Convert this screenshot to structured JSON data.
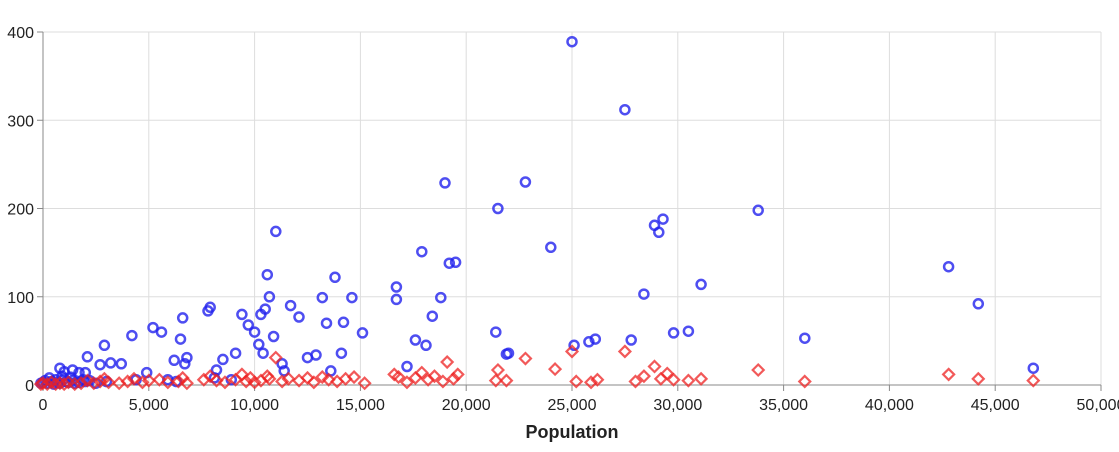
{
  "chart_data": {
    "type": "scatter",
    "xlabel": "Population",
    "ylabel": "",
    "xlim": [
      0,
      50000
    ],
    "ylim": [
      0,
      400
    ],
    "grid": true,
    "x_ticks": [
      "0",
      "5,000",
      "10,000",
      "15,000",
      "20,000",
      "25,000",
      "30,000",
      "35,000",
      "40,000",
      "45,000",
      "50,000"
    ],
    "y_ticks": [
      "0",
      "100",
      "200",
      "300",
      "400"
    ],
    "series": [
      {
        "marker": "circle",
        "color": "#2222ee",
        "points": [
          [
            -100,
            2
          ],
          [
            0,
            3
          ],
          [
            100,
            5
          ],
          [
            200,
            2
          ],
          [
            300,
            8
          ],
          [
            400,
            4
          ],
          [
            500,
            1
          ],
          [
            600,
            6
          ],
          [
            700,
            3
          ],
          [
            800,
            2
          ],
          [
            900,
            10
          ],
          [
            1000,
            7
          ],
          [
            1100,
            4
          ],
          [
            1200,
            3
          ],
          [
            1300,
            9
          ],
          [
            1400,
            5
          ],
          [
            1500,
            2
          ],
          [
            1700,
            3
          ],
          [
            1900,
            6
          ],
          [
            2000,
            4
          ],
          [
            2200,
            5
          ],
          [
            2500,
            2
          ],
          [
            3000,
            4
          ],
          [
            800,
            19
          ],
          [
            1000,
            15
          ],
          [
            1400,
            17
          ],
          [
            1700,
            14
          ],
          [
            2100,
            32
          ],
          [
            2000,
            14
          ],
          [
            2700,
            23
          ],
          [
            2900,
            45
          ],
          [
            3200,
            25
          ],
          [
            3700,
            24
          ],
          [
            4200,
            56
          ],
          [
            4400,
            6
          ],
          [
            4900,
            14
          ],
          [
            5200,
            65
          ],
          [
            5600,
            60
          ],
          [
            5900,
            6
          ],
          [
            6200,
            28
          ],
          [
            6300,
            4
          ],
          [
            6500,
            52
          ],
          [
            6600,
            76
          ],
          [
            6700,
            24
          ],
          [
            6800,
            31
          ],
          [
            7800,
            84
          ],
          [
            7900,
            88
          ],
          [
            8100,
            8
          ],
          [
            8200,
            17
          ],
          [
            8500,
            29
          ],
          [
            8900,
            6
          ],
          [
            9100,
            36
          ],
          [
            9400,
            80
          ],
          [
            9700,
            68
          ],
          [
            10000,
            60
          ],
          [
            10200,
            46
          ],
          [
            10300,
            80
          ],
          [
            10400,
            36
          ],
          [
            10500,
            86
          ],
          [
            10600,
            125
          ],
          [
            10700,
            100
          ],
          [
            10900,
            55
          ],
          [
            11000,
            174
          ],
          [
            11300,
            24
          ],
          [
            11400,
            16
          ],
          [
            11700,
            90
          ],
          [
            12100,
            77
          ],
          [
            12500,
            31
          ],
          [
            12900,
            34
          ],
          [
            13200,
            99
          ],
          [
            13400,
            70
          ],
          [
            13600,
            16
          ],
          [
            13800,
            122
          ],
          [
            14100,
            36
          ],
          [
            14200,
            71
          ],
          [
            14600,
            99
          ],
          [
            15100,
            59
          ],
          [
            16700,
            97
          ],
          [
            16700,
            111
          ],
          [
            17200,
            21
          ],
          [
            17600,
            51
          ],
          [
            18100,
            45
          ],
          [
            18400,
            78
          ],
          [
            17900,
            151
          ],
          [
            18800,
            99
          ],
          [
            19000,
            229
          ],
          [
            19200,
            138
          ],
          [
            19500,
            139
          ],
          [
            21400,
            60
          ],
          [
            21500,
            200
          ],
          [
            21900,
            35
          ],
          [
            22000,
            36
          ],
          [
            22800,
            230
          ],
          [
            24000,
            156
          ],
          [
            25000,
            389
          ],
          [
            25100,
            45
          ],
          [
            25800,
            49
          ],
          [
            26100,
            52
          ],
          [
            27500,
            312
          ],
          [
            27800,
            51
          ],
          [
            28400,
            103
          ],
          [
            28900,
            181
          ],
          [
            29100,
            173
          ],
          [
            29300,
            188
          ],
          [
            29800,
            59
          ],
          [
            30500,
            61
          ],
          [
            31100,
            114
          ],
          [
            33800,
            198
          ],
          [
            36000,
            53
          ],
          [
            42800,
            134
          ],
          [
            44200,
            92
          ],
          [
            46800,
            19
          ]
        ]
      },
      {
        "marker": "diamond",
        "color": "#ee2222",
        "points": [
          [
            -100,
            1
          ],
          [
            0,
            2
          ],
          [
            200,
            1
          ],
          [
            400,
            3
          ],
          [
            600,
            1
          ],
          [
            800,
            2
          ],
          [
            1000,
            1
          ],
          [
            1200,
            3
          ],
          [
            1500,
            1
          ],
          [
            1800,
            2
          ],
          [
            2100,
            5
          ],
          [
            2400,
            2
          ],
          [
            2700,
            4
          ],
          [
            2900,
            7
          ],
          [
            3100,
            3
          ],
          [
            3600,
            2
          ],
          [
            4000,
            4
          ],
          [
            4300,
            7
          ],
          [
            4700,
            3
          ],
          [
            5000,
            5
          ],
          [
            5500,
            6
          ],
          [
            5900,
            3
          ],
          [
            6400,
            4
          ],
          [
            6600,
            8
          ],
          [
            6800,
            2
          ],
          [
            7600,
            6
          ],
          [
            7900,
            10
          ],
          [
            8200,
            5
          ],
          [
            8600,
            3
          ],
          [
            9100,
            6
          ],
          [
            9400,
            12
          ],
          [
            9600,
            4
          ],
          [
            9800,
            8
          ],
          [
            10000,
            3
          ],
          [
            10300,
            5
          ],
          [
            10600,
            10
          ],
          [
            10700,
            7
          ],
          [
            11000,
            31
          ],
          [
            11300,
            4
          ],
          [
            11600,
            7
          ],
          [
            12100,
            5
          ],
          [
            12500,
            8
          ],
          [
            12800,
            3
          ],
          [
            13200,
            9
          ],
          [
            13500,
            6
          ],
          [
            13900,
            4
          ],
          [
            14300,
            7
          ],
          [
            14700,
            9
          ],
          [
            15200,
            2
          ],
          [
            16600,
            12
          ],
          [
            16800,
            9
          ],
          [
            17200,
            3
          ],
          [
            17600,
            8
          ],
          [
            17900,
            14
          ],
          [
            18200,
            6
          ],
          [
            18500,
            10
          ],
          [
            18900,
            4
          ],
          [
            19100,
            26
          ],
          [
            19400,
            7
          ],
          [
            19600,
            12
          ],
          [
            21400,
            5
          ],
          [
            21500,
            17
          ],
          [
            21900,
            5
          ],
          [
            22800,
            30
          ],
          [
            24200,
            18
          ],
          [
            25000,
            38
          ],
          [
            25200,
            4
          ],
          [
            25900,
            3
          ],
          [
            26200,
            6
          ],
          [
            27500,
            38
          ],
          [
            28000,
            4
          ],
          [
            28400,
            10
          ],
          [
            28900,
            21
          ],
          [
            29200,
            7
          ],
          [
            29500,
            13
          ],
          [
            29800,
            6
          ],
          [
            30500,
            5
          ],
          [
            31100,
            7
          ],
          [
            33800,
            17
          ],
          [
            36000,
            4
          ],
          [
            42800,
            12
          ],
          [
            44200,
            7
          ],
          [
            46800,
            5
          ]
        ]
      }
    ]
  }
}
